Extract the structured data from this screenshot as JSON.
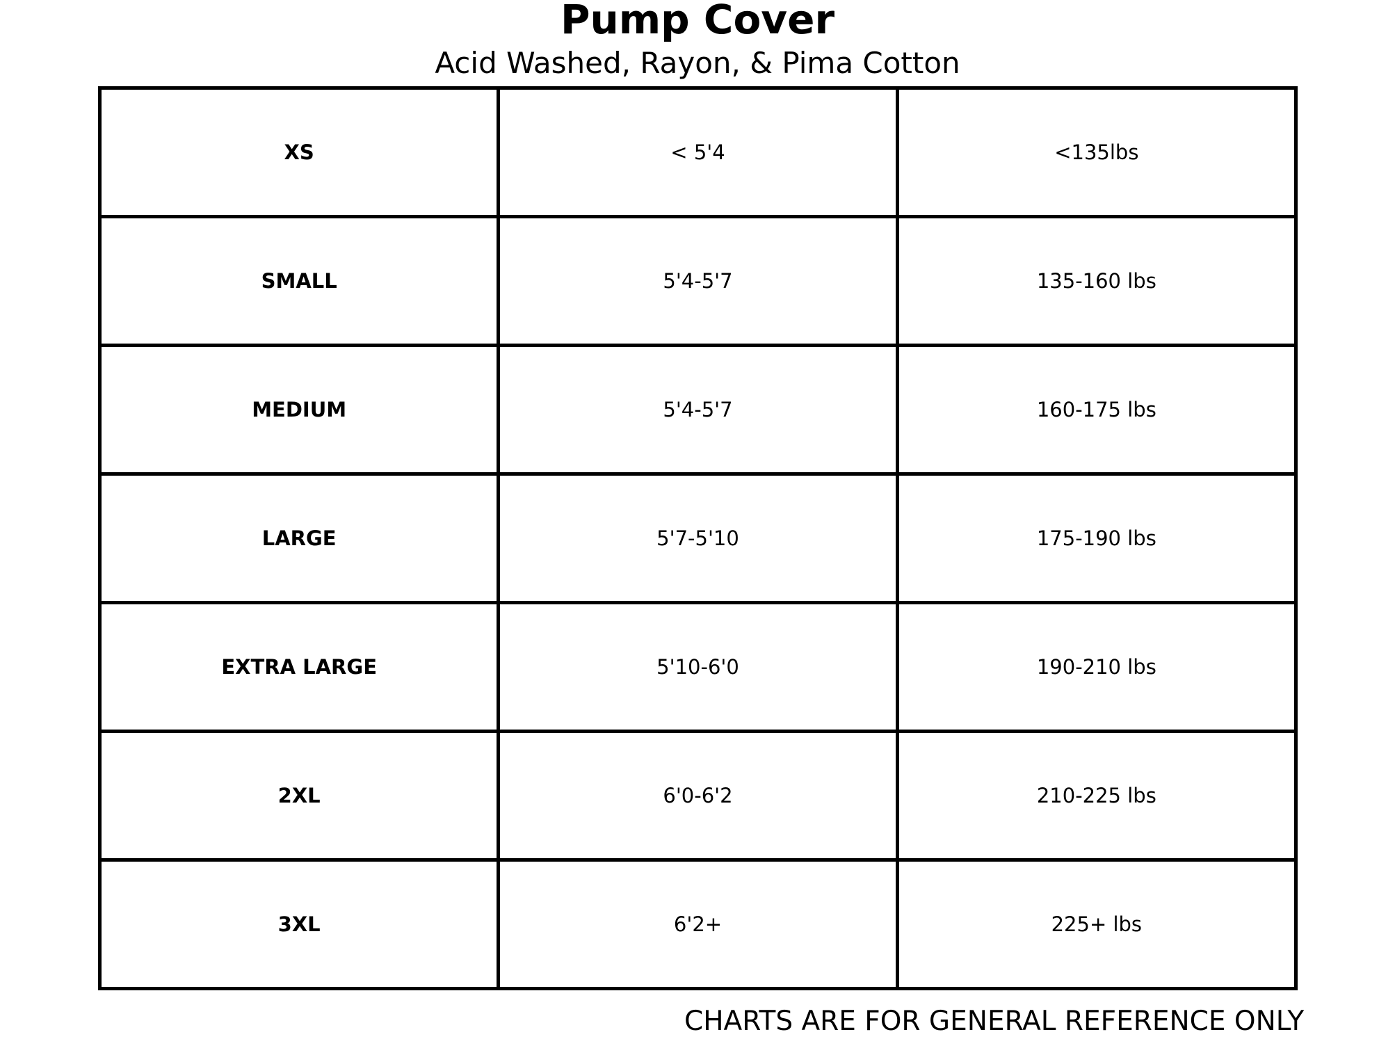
{
  "title": "Pump Cover",
  "subtitle": "Acid Washed, Rayon, & Pima Cotton",
  "rows": [
    {
      "size": "XS",
      "height": "< 5'4",
      "weight": "<135lbs"
    },
    {
      "size": "SMALL",
      "height": "5'4-5'7",
      "weight": "135-160 lbs"
    },
    {
      "size": "MEDIUM",
      "height": "5'4-5'7",
      "weight": "160-175 lbs"
    },
    {
      "size": "LARGE",
      "height": "5'7-5'10",
      "weight": "175-190 lbs"
    },
    {
      "size": "EXTRA LARGE",
      "height": "5'10-6'0",
      "weight": "190-210 lbs"
    },
    {
      "size": "2XL",
      "height": "6'0-6'2",
      "weight": "210-225 lbs"
    },
    {
      "size": "3XL",
      "height": "6'2+",
      "weight": "225+ lbs"
    }
  ],
  "footer": "CHARTS ARE FOR GENERAL REFERENCE ONLY"
}
